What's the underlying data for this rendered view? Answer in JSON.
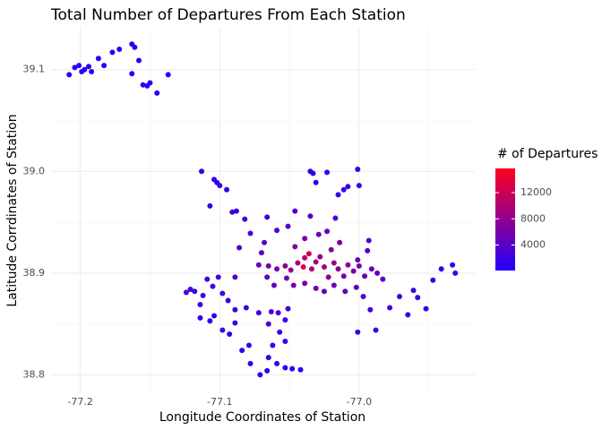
{
  "chart_data": {
    "type": "scatter",
    "title": "Total Number of Departures From Each Station",
    "x_label": "Longitude Coordinates of Station",
    "y_label": "Latitude Corrdinates of Station",
    "color_label": "# of Departures",
    "xlim": [
      -77.221,
      -76.917
    ],
    "ylim": [
      38.781,
      39.142
    ],
    "xticks": [
      -77.2,
      -77.1,
      {
        "value": -77,
        "label": "-77.0"
      }
    ],
    "yticks": [
      38.8,
      38.9,
      {
        "value": 39,
        "label": "39.0"
      },
      39.1
    ],
    "x_minor_ticks": [
      -77.15,
      -77.05,
      -76.95
    ],
    "y_minor_ticks": [
      38.85,
      38.95,
      39.05
    ],
    "grid": true,
    "colorlim": [
      100,
      15700
    ],
    "colorticks": [
      4000,
      8000,
      12000
    ],
    "color_low": "#2200ff",
    "color_high": "#ff0020",
    "x": [
      -77.208,
      -77.204,
      -77.201,
      -77.199,
      -77.197,
      -77.194,
      -77.192,
      -77.187,
      -77.183,
      -77.177,
      -77.172,
      -77.163,
      -77.161,
      -77.163,
      -77.158,
      -77.155,
      -77.152,
      -77.15,
      -77.145,
      -77.137,
      -77.113,
      -77.104,
      -77.102,
      -77.1,
      -77.095,
      -77.107,
      -77.091,
      -77.088,
      -77.082,
      -77.078,
      -77.066,
      -77.035,
      -77.033,
      -77.031,
      -77.023,
      -77.015,
      -77.011,
      -77.008,
      -77.001,
      -77.0,
      -77.017,
      -77.035,
      -77.046,
      -77.051,
      -77.059,
      -77.068,
      -77.07,
      -77.086,
      -77.072,
      -77.065,
      -77.059,
      -77.053,
      -77.049,
      -77.044,
      -77.039,
      -77.036,
      -77.04,
      -77.034,
      -77.031,
      -77.028,
      -77.025,
      -77.022,
      -77.018,
      -77.015,
      -77.011,
      -77.008,
      -77.004,
      -77.0,
      -76.996,
      -76.991,
      -76.987,
      -76.983,
      -76.994,
      -76.993,
      -77.001,
      -77.014,
      -77.02,
      -77.029,
      -77.023,
      -77.039,
      -77.046,
      -77.052,
      -77.047,
      -77.039,
      -77.031,
      -77.025,
      -77.018,
      -77.01,
      -77.002,
      -76.997,
      -76.992,
      -77.001,
      -76.988,
      -76.978,
      -76.971,
      -76.961,
      -76.958,
      -76.965,
      -76.952,
      -76.947,
      -76.941,
      -76.933,
      -76.931,
      -77.124,
      -77.121,
      -77.118,
      -77.114,
      -77.112,
      -77.109,
      -77.105,
      -77.101,
      -77.098,
      -77.094,
      -77.089,
      -77.114,
      -77.107,
      -77.104,
      -77.098,
      -77.093,
      -77.089,
      -77.089,
      -77.081,
      -77.072,
      -77.063,
      -77.065,
      -77.058,
      -77.053,
      -77.051,
      -77.057,
      -77.053,
      -77.062,
      -77.065,
      -77.059,
      -77.053,
      -77.066,
      -77.071,
      -77.048,
      -77.042,
      -77.078,
      -77.084,
      -77.079,
      -77.066,
      -77.061
    ],
    "values": [
      39.095,
      39.102,
      39.104,
      39.098,
      39.1,
      39.103,
      39.098,
      39.111,
      39.104,
      39.117,
      39.12,
      39.125,
      39.122,
      39.096,
      39.109,
      39.085,
      39.084,
      39.087,
      39.077,
      39.095,
      39.0,
      38.992,
      38.989,
      38.986,
      38.982,
      38.966,
      38.96,
      38.961,
      38.953,
      38.939,
      38.955,
      39.0,
      38.998,
      38.989,
      38.999,
      38.977,
      38.982,
      38.985,
      39.002,
      38.986,
      38.954,
      38.956,
      38.961,
      38.946,
      38.942,
      38.93,
      38.92,
      38.925,
      38.908,
      38.907,
      38.904,
      38.907,
      38.903,
      38.91,
      38.915,
      38.919,
      38.906,
      38.904,
      38.911,
      38.916,
      38.906,
      38.896,
      38.91,
      38.904,
      38.897,
      38.908,
      38.902,
      38.907,
      38.897,
      38.904,
      38.9,
      38.894,
      38.922,
      38.932,
      38.913,
      38.93,
      38.923,
      38.938,
      38.941,
      38.934,
      38.926,
      38.895,
      38.888,
      38.89,
      38.885,
      38.882,
      38.888,
      38.882,
      38.886,
      38.877,
      38.864,
      38.842,
      38.844,
      38.866,
      38.877,
      38.883,
      38.876,
      38.859,
      38.865,
      38.893,
      38.904,
      38.908,
      38.9,
      38.881,
      38.884,
      38.882,
      38.869,
      38.878,
      38.894,
      38.887,
      38.896,
      38.88,
      38.873,
      38.896,
      38.856,
      38.853,
      38.858,
      38.844,
      38.84,
      38.851,
      38.864,
      38.866,
      38.861,
      38.862,
      38.85,
      38.861,
      38.854,
      38.865,
      38.842,
      38.833,
      38.829,
      38.817,
      38.811,
      38.807,
      38.804,
      38.8,
      38.806,
      38.805,
      38.811,
      38.824,
      38.829,
      38.896,
      38.888
    ],
    "departures": [
      420,
      510,
      380,
      600,
      450,
      700,
      520,
      350,
      480,
      610,
      390,
      720,
      540,
      300,
      460,
      680,
      590,
      410,
      350,
      300,
      700,
      1500,
      1300,
      1800,
      1600,
      1200,
      2300,
      2100,
      2600,
      2900,
      2400,
      900,
      800,
      1100,
      700,
      1500,
      1700,
      1400,
      600,
      1600,
      3200,
      3800,
      3000,
      3500,
      3300,
      4200,
      4600,
      3400,
      5200,
      5800,
      6500,
      7400,
      8200,
      9500,
      11000,
      12500,
      13800,
      10500,
      9800,
      8700,
      9200,
      7800,
      8400,
      7200,
      6800,
      7600,
      6200,
      5900,
      5400,
      4800,
      4300,
      3600,
      3900,
      3100,
      5600,
      6100,
      7000,
      5300,
      4500,
      6400,
      6900,
      6000,
      5500,
      6300,
      5700,
      5000,
      5100,
      4700,
      4400,
      3700,
      2800,
      1800,
      2000,
      2500,
      2200,
      1900,
      1700,
      1400,
      1200,
      1600,
      1300,
      1000,
      1100,
      2600,
      2400,
      2100,
      1900,
      2300,
      2700,
      2500,
      3000,
      2200,
      2000,
      3300,
      1500,
      1300,
      1600,
      1400,
      1200,
      1700,
      2000,
      2300,
      2600,
      2900,
      2400,
      2800,
      2500,
      2700,
      2100,
      1800,
      1600,
      1400,
      1200,
      1000,
      900,
      800,
      700,
      600,
      1100,
      1300,
      1500,
      4800,
      4100
    ]
  }
}
